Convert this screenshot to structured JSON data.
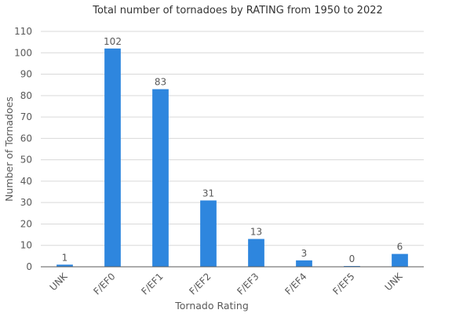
{
  "chart_data": {
    "type": "bar",
    "title": "Total number of tornadoes by RATING from 1950 to 2022",
    "xlabel": "Tornado Rating",
    "ylabel": "Number of Tornadoes",
    "categories": [
      "UNK",
      "F/EF0",
      "F/EF1",
      "F/EF2",
      "F/EF3",
      "F/EF4",
      "F/EF5",
      "UNK"
    ],
    "values": [
      1,
      102,
      83,
      31,
      13,
      3,
      0,
      6
    ],
    "ylim": [
      0,
      110
    ],
    "yticks": [
      0,
      10,
      20,
      30,
      40,
      50,
      60,
      70,
      80,
      90,
      100,
      110
    ],
    "grid": true,
    "legend": "none",
    "bar_color": "#2e86de",
    "grid_color": "#d9d9d9"
  }
}
